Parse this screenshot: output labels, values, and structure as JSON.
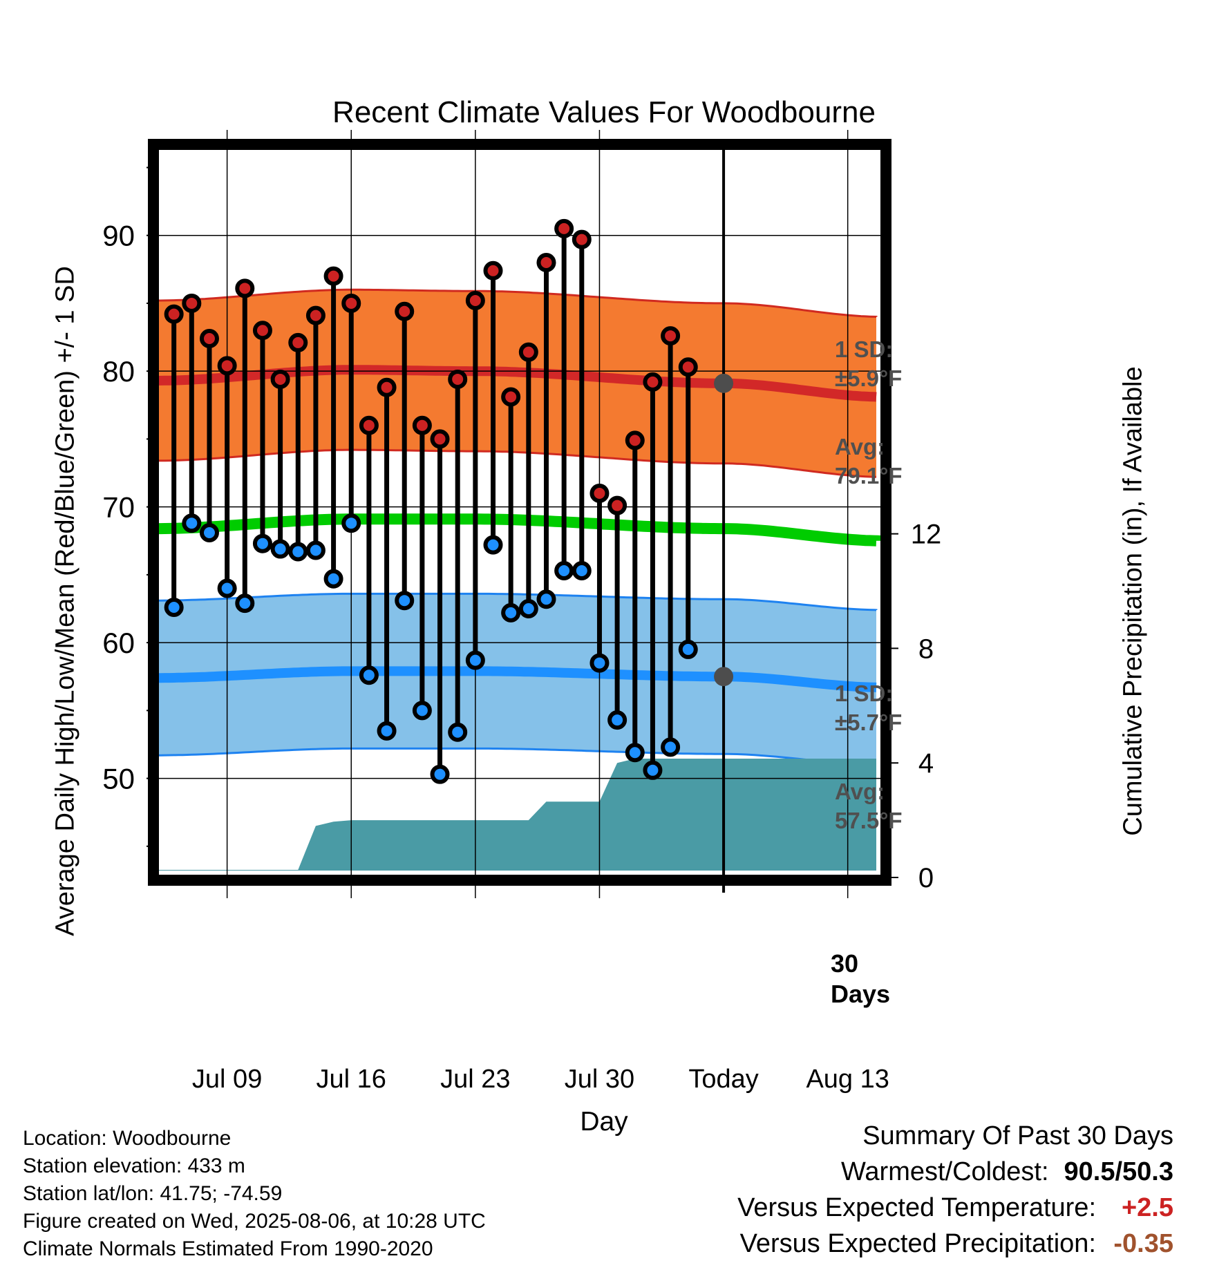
{
  "chart_data": {
    "type": "line",
    "title": "Recent Climate Values For Woodbourne",
    "xlabel": "Day",
    "ylabel": "Average Daily High/Low/Mean (Red/Blue/Green) +/- 1 SD",
    "y2label": "Cumulative Precipitation (in), If Available",
    "x_ticks": [
      "Jul 09",
      "Jul 16",
      "Jul 23",
      "Jul 30",
      "Today",
      "Aug 13"
    ],
    "y_ticks": [
      50,
      60,
      70,
      80,
      90
    ],
    "y2_ticks": [
      0,
      4,
      8,
      12
    ],
    "ylim": [
      42.7,
      96.5
    ],
    "y2lim": [
      0,
      25.5
    ],
    "xlim": [
      "Jul 05",
      "Aug 15"
    ],
    "grid": true,
    "today": "Aug 06",
    "today_label": "Today",
    "window_label": [
      "30",
      "Days"
    ],
    "dates": [
      "Jul 06",
      "Jul 07",
      "Jul 08",
      "Jul 09",
      "Jul 10",
      "Jul 11",
      "Jul 12",
      "Jul 13",
      "Jul 14",
      "Jul 15",
      "Jul 16",
      "Jul 17",
      "Jul 18",
      "Jul 19",
      "Jul 20",
      "Jul 21",
      "Jul 22",
      "Jul 23",
      "Jul 24",
      "Jul 25",
      "Jul 26",
      "Jul 27",
      "Jul 28",
      "Jul 29",
      "Jul 30",
      "Jul 31",
      "Aug 01",
      "Aug 02",
      "Aug 03",
      "Aug 04",
      "Aug 05"
    ],
    "series": [
      {
        "name": "High",
        "color": "#cc2222",
        "values": [
          84.2,
          85.0,
          82.4,
          80.4,
          86.1,
          83.0,
          79.4,
          82.1,
          84.1,
          87.0,
          85.0,
          76.0,
          78.8,
          84.4,
          76.0,
          75.0,
          79.4,
          85.2,
          87.4,
          78.1,
          81.4,
          88.0,
          90.5,
          89.7,
          71.0,
          70.1,
          74.9,
          79.2,
          82.6,
          80.3,
          null
        ]
      },
      {
        "name": "Low",
        "color": "#1e90ff",
        "values": [
          62.6,
          68.8,
          68.1,
          64.0,
          62.9,
          67.3,
          66.9,
          66.7,
          66.8,
          64.7,
          68.8,
          57.6,
          53.5,
          63.1,
          55.0,
          50.3,
          53.4,
          58.7,
          67.2,
          62.2,
          62.5,
          63.2,
          65.3,
          65.3,
          58.5,
          54.3,
          51.9,
          50.6,
          52.3,
          59.5,
          null
        ]
      }
    ],
    "normals": {
      "dates": [
        "Jul 05",
        "Jul 16",
        "Jul 23",
        "Aug 06",
        "Aug 15"
      ],
      "high_avg": [
        79.3,
        80.1,
        80.0,
        79.1,
        78.1
      ],
      "high_sd": 5.9,
      "low_avg": [
        57.4,
        57.9,
        57.9,
        57.5,
        56.7
      ],
      "low_sd": 5.7,
      "mean_avg": [
        68.4,
        69.1,
        69.1,
        68.4,
        67.5
      ]
    },
    "precipitation": {
      "dates": [
        "Jul 05",
        "Jul 08",
        "Jul 09",
        "Jul 10",
        "Jul 13",
        "Jul 14",
        "Jul 15",
        "Jul 16",
        "Jul 26",
        "Jul 27",
        "Jul 30",
        "Jul 31",
        "Aug 01",
        "Aug 15"
      ],
      "values": [
        0,
        0,
        0,
        0.1,
        0.15,
        1.8,
        1.95,
        2.0,
        2.0,
        2.65,
        2.65,
        4.0,
        4.15,
        4.15
      ]
    },
    "annotations": {
      "high_sd": [
        "1 SD:",
        "±5.9°F"
      ],
      "high_avg": [
        "Avg:",
        "79.1°F"
      ],
      "low_sd": [
        "1 SD:",
        "±5.7°F"
      ],
      "low_avg": [
        "Avg:",
        "57.5°F"
      ]
    },
    "colors": {
      "high_band": "#f47a30",
      "high_band_edge": "#d02a20",
      "high_avg_line": "#d22828",
      "low_band": "#85c1e9",
      "low_band_edge": "#1e82f0",
      "low_avg_line": "#1e90ff",
      "mean_line": "#00cc00",
      "precip_fill": "#4a9ba5",
      "annotation_text": "#505050"
    }
  },
  "info": {
    "location": "Location: Woodbourne",
    "elevation": "Station elevation: 433 m",
    "latlon": "Station lat/lon: 41.75; -74.59",
    "created": "Figure created on Wed, 2025-08-06, at 10:28 UTC",
    "normals": "Climate Normals Estimated From 1990-2020"
  },
  "summary": {
    "heading": "Summary Of Past 30 Days",
    "warm_cold_label": "Warmest/Coldest:",
    "warm_cold_value": "90.5/50.3",
    "temp_label": "Versus Expected Temperature:",
    "temp_value": "+2.5",
    "temp_color": "#cc2222",
    "precip_label": "Versus Expected Precipitation:",
    "precip_value": "-0.35",
    "precip_color": "#a0522d"
  }
}
